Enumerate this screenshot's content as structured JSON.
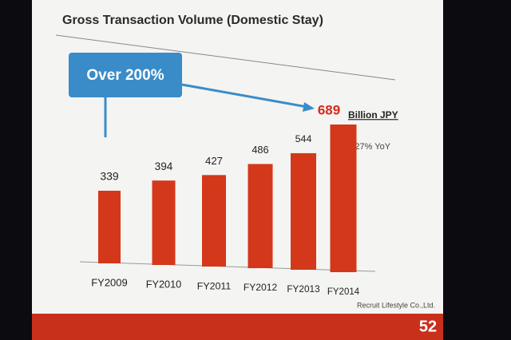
{
  "chart_data": {
    "type": "bar",
    "title": "Gross Transaction Volume (Domestic Stay)",
    "categories": [
      "FY2009",
      "FY2010",
      "FY2011",
      "FY2012",
      "FY2013",
      "FY2014"
    ],
    "values": [
      339,
      394,
      427,
      486,
      544,
      689
    ],
    "color": "#d4381a",
    "callout": "Over 200%",
    "unit": "Billion JPY",
    "growth_note": "+27% YoY",
    "footer": "Recruit Lifestyle Co.,Ltd.",
    "page_number": "52"
  }
}
